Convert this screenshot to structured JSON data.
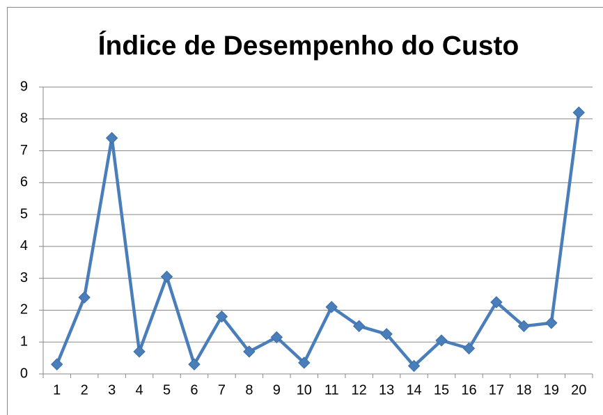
{
  "chart_data": {
    "type": "line",
    "title": "Índice de Desempenho do Custo",
    "categories": [
      "1",
      "2",
      "3",
      "4",
      "5",
      "6",
      "7",
      "8",
      "9",
      "10",
      "11",
      "12",
      "13",
      "14",
      "15",
      "16",
      "17",
      "18",
      "19",
      "20"
    ],
    "series": [
      {
        "name": "Índice de Desempenho do Custo",
        "color": "#4a7ebb",
        "values": [
          0.3,
          2.4,
          7.4,
          0.7,
          3.05,
          0.3,
          1.8,
          0.7,
          1.15,
          0.35,
          2.1,
          1.5,
          1.25,
          0.25,
          1.05,
          0.8,
          2.25,
          1.5,
          1.6,
          8.2
        ]
      }
    ],
    "ylim": [
      0,
      9
    ],
    "yticks": [
      0,
      1,
      2,
      3,
      4,
      5,
      6,
      7,
      8,
      9
    ],
    "grid": true
  }
}
